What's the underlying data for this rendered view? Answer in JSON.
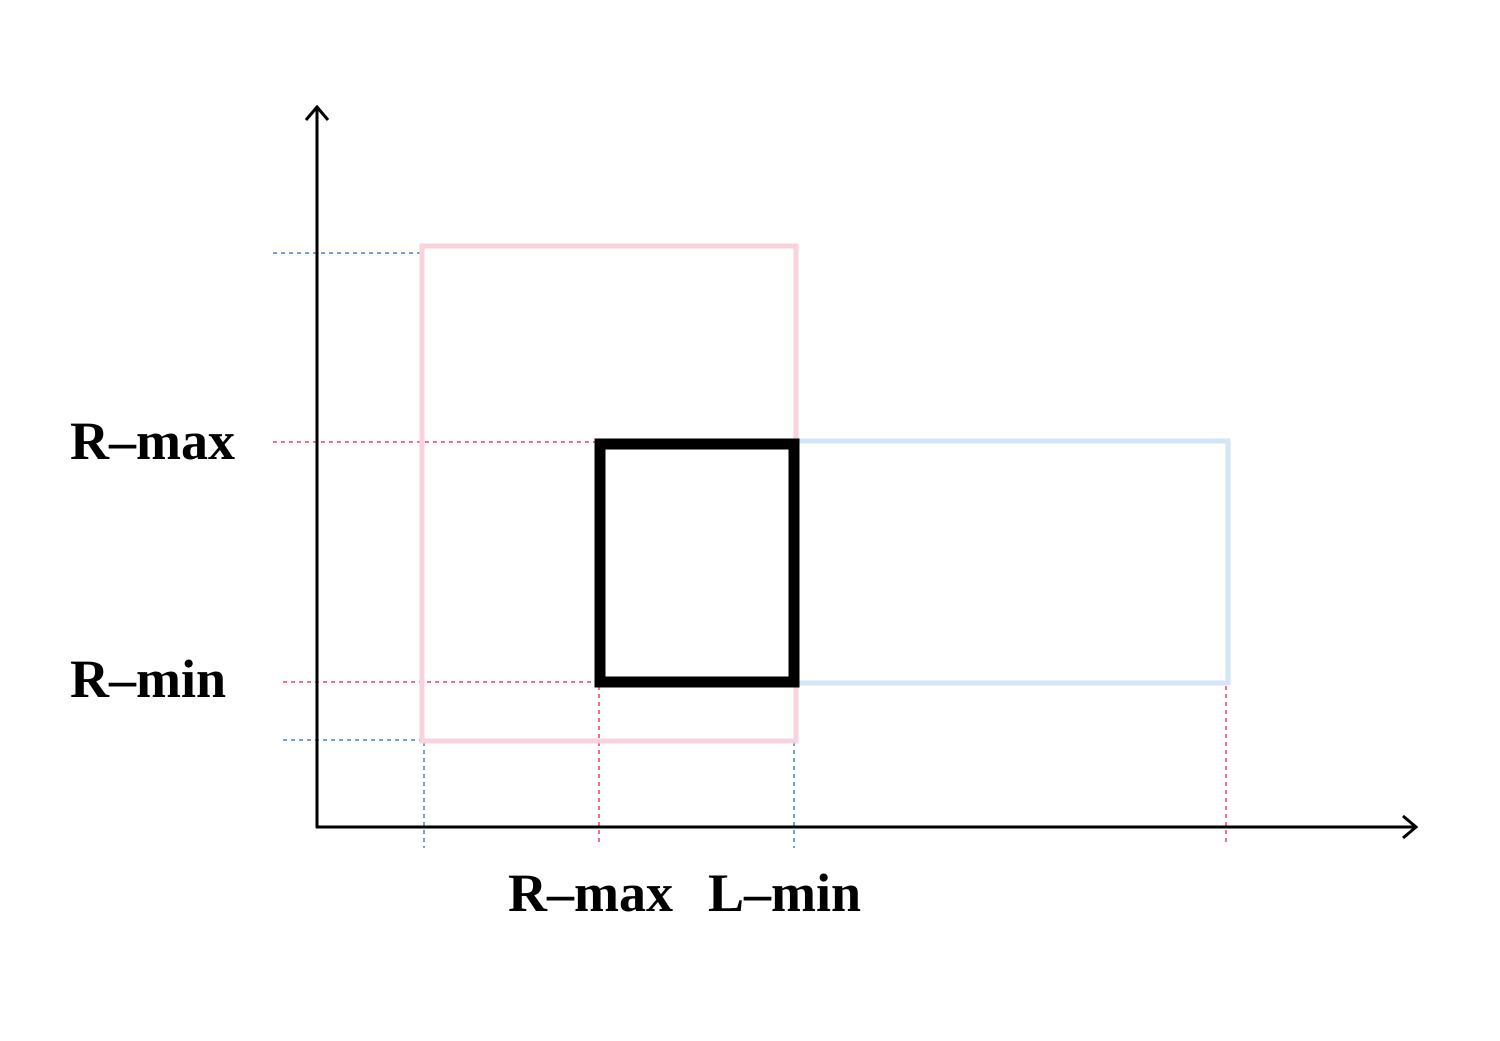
{
  "labels": {
    "y_upper": "R–max",
    "y_lower": "R–min",
    "x_left": "R–max",
    "x_right": "L–min"
  },
  "colors": {
    "axis": "#000000",
    "pink_rect": "#f9d3dc",
    "blue_rect": "#d3e5f7",
    "overlap_rect": "#000000",
    "pink_guide": "#e8455f",
    "blue_guide": "#3a86d4"
  },
  "shapes": [
    "pink-rectangle",
    "blue-rectangle",
    "overlap-rectangle",
    "x-axis-arrow",
    "y-axis-arrow"
  ]
}
